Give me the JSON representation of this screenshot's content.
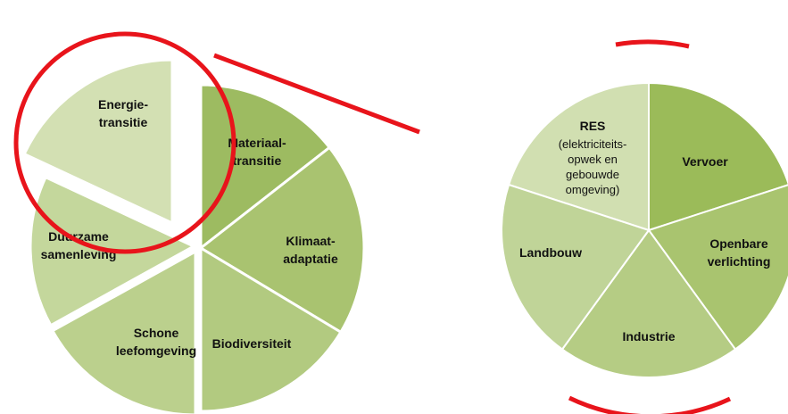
{
  "left_pie": {
    "segments": [
      {
        "label": [
          "Energie-",
          "transitie"
        ]
      },
      {
        "label": [
          "Materiaal-",
          "transitie"
        ]
      },
      {
        "label": [
          "Klimaat-",
          "adaptatie"
        ]
      },
      {
        "label": [
          "Biodiversiteit"
        ]
      },
      {
        "label": [
          "Schone",
          "leefomgeving"
        ]
      },
      {
        "label": [
          "Duurzame",
          "samenleving"
        ]
      }
    ]
  },
  "right_pie": {
    "segments": [
      {
        "label": [
          "RES"
        ],
        "detail": [
          "(elektriciteits-",
          "opwek en",
          "gebouwde",
          "omgeving)"
        ]
      },
      {
        "label": [
          "Vervoer"
        ]
      },
      {
        "label": [
          "Openbare",
          "verlichting"
        ]
      },
      {
        "label": [
          "Industrie"
        ]
      },
      {
        "label": [
          "Landbouw"
        ]
      }
    ]
  }
}
